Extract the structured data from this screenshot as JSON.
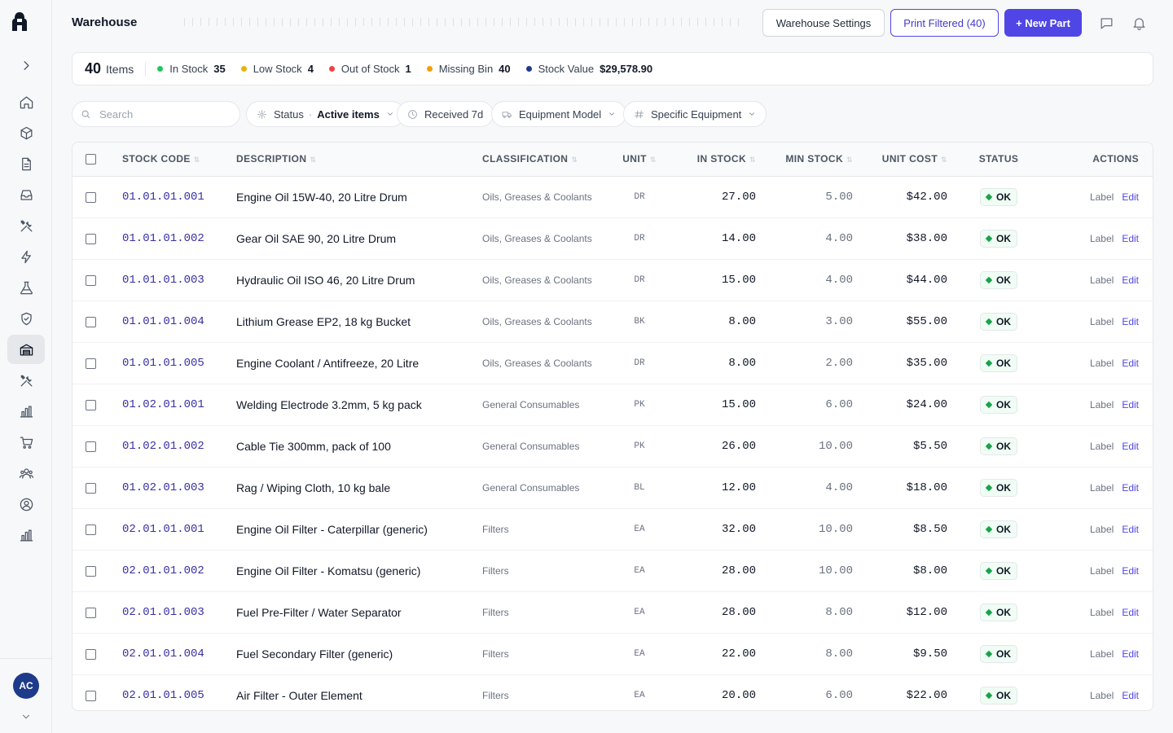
{
  "header": {
    "title": "Warehouse",
    "settings_label": "Warehouse Settings",
    "print_label": "Print Filtered (40)",
    "new_label": "+ New Part"
  },
  "summary": {
    "count": "40",
    "items_label": "Items",
    "stats": [
      {
        "label": "In Stock",
        "value": "35",
        "color": "#22c55e"
      },
      {
        "label": "Low Stock",
        "value": "4",
        "color": "#eab308"
      },
      {
        "label": "Out of Stock",
        "value": "1",
        "color": "#ef4444"
      },
      {
        "label": "Missing Bin",
        "value": "40",
        "color": "#f59e0b"
      },
      {
        "label": "Stock Value",
        "value": "$29,578.90",
        "color": "#1e3a8a"
      }
    ]
  },
  "filters": {
    "search_placeholder": "Search",
    "status_label": "Status",
    "status_value": "Active items",
    "received_label": "Received 7d",
    "equipment_model_label": "Equipment Model",
    "specific_equipment_label": "Specific Equipment"
  },
  "sidebar": {
    "avatar_initials": "AC",
    "icons": [
      "chevron-right-icon",
      "home-icon",
      "box-icon",
      "document-icon",
      "inbox-icon",
      "tools-icon",
      "lightning-icon",
      "flask-icon",
      "shield-icon",
      "warehouse-icon",
      "wrench-icon",
      "bar-chart-icon",
      "cart-icon",
      "team-icon",
      "user-circle-icon",
      "analytics-icon"
    ]
  },
  "table": {
    "columns": [
      "STOCK CODE",
      "DESCRIPTION",
      "CLASSIFICATION",
      "UNIT",
      "IN STOCK",
      "MIN STOCK",
      "UNIT COST",
      "STATUS",
      "ACTIONS"
    ],
    "action_label": "Label",
    "action_edit": "Edit",
    "rows": [
      {
        "code": "01.01.01.001",
        "desc": "Engine Oil 15W-40, 20 Litre Drum",
        "cls": "Oils, Greases & Coolants",
        "unit": "DR",
        "in": "27.00",
        "min": "5.00",
        "cost": "$42.00",
        "status": "OK"
      },
      {
        "code": "01.01.01.002",
        "desc": "Gear Oil SAE 90, 20 Litre Drum",
        "cls": "Oils, Greases & Coolants",
        "unit": "DR",
        "in": "14.00",
        "min": "4.00",
        "cost": "$38.00",
        "status": "OK"
      },
      {
        "code": "01.01.01.003",
        "desc": "Hydraulic Oil ISO 46, 20 Litre Drum",
        "cls": "Oils, Greases & Coolants",
        "unit": "DR",
        "in": "15.00",
        "min": "4.00",
        "cost": "$44.00",
        "status": "OK"
      },
      {
        "code": "01.01.01.004",
        "desc": "Lithium Grease EP2, 18 kg Bucket",
        "cls": "Oils, Greases & Coolants",
        "unit": "BK",
        "in": "8.00",
        "min": "3.00",
        "cost": "$55.00",
        "status": "OK"
      },
      {
        "code": "01.01.01.005",
        "desc": "Engine Coolant / Antifreeze, 20 Litre",
        "cls": "Oils, Greases & Coolants",
        "unit": "DR",
        "in": "8.00",
        "min": "2.00",
        "cost": "$35.00",
        "status": "OK"
      },
      {
        "code": "01.02.01.001",
        "desc": "Welding Electrode 3.2mm, 5 kg pack",
        "cls": "General Consumables",
        "unit": "PK",
        "in": "15.00",
        "min": "6.00",
        "cost": "$24.00",
        "status": "OK"
      },
      {
        "code": "01.02.01.002",
        "desc": "Cable Tie 300mm, pack of 100",
        "cls": "General Consumables",
        "unit": "PK",
        "in": "26.00",
        "min": "10.00",
        "cost": "$5.50",
        "status": "OK"
      },
      {
        "code": "01.02.01.003",
        "desc": "Rag / Wiping Cloth, 10 kg bale",
        "cls": "General Consumables",
        "unit": "BL",
        "in": "12.00",
        "min": "4.00",
        "cost": "$18.00",
        "status": "OK"
      },
      {
        "code": "02.01.01.001",
        "desc": "Engine Oil Filter - Caterpillar (generic)",
        "cls": "Filters",
        "unit": "EA",
        "in": "32.00",
        "min": "10.00",
        "cost": "$8.50",
        "status": "OK"
      },
      {
        "code": "02.01.01.002",
        "desc": "Engine Oil Filter - Komatsu (generic)",
        "cls": "Filters",
        "unit": "EA",
        "in": "28.00",
        "min": "10.00",
        "cost": "$8.00",
        "status": "OK"
      },
      {
        "code": "02.01.01.003",
        "desc": "Fuel Pre-Filter / Water Separator",
        "cls": "Filters",
        "unit": "EA",
        "in": "28.00",
        "min": "8.00",
        "cost": "$12.00",
        "status": "OK"
      },
      {
        "code": "02.01.01.004",
        "desc": "Fuel Secondary Filter (generic)",
        "cls": "Filters",
        "unit": "EA",
        "in": "22.00",
        "min": "8.00",
        "cost": "$9.50",
        "status": "OK"
      },
      {
        "code": "02.01.01.005",
        "desc": "Air Filter - Outer Element",
        "cls": "Filters",
        "unit": "EA",
        "in": "20.00",
        "min": "6.00",
        "cost": "$22.00",
        "status": "OK"
      }
    ]
  }
}
